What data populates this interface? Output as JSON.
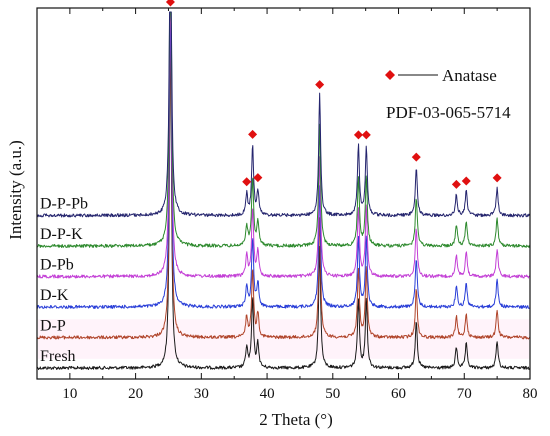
{
  "chart_data": {
    "type": "line",
    "xlabel": "2 Theta (°)",
    "ylabel": "Intensity (a.u.)",
    "xlim": [
      5,
      80
    ],
    "x_ticks": [
      10,
      20,
      30,
      40,
      50,
      60,
      70,
      80
    ],
    "y_ticks_shown": false,
    "grid": false,
    "legend": {
      "placement": "top-right",
      "entries": [
        {
          "marker": "diamond",
          "label": "Anatase"
        },
        {
          "marker": "none",
          "label": "PDF-03-065-5714"
        }
      ]
    },
    "peaks": [
      {
        "two_theta": 25.3,
        "rel_intensity": 1.0
      },
      {
        "two_theta": 36.9,
        "rel_intensity": 0.06
      },
      {
        "two_theta": 37.8,
        "rel_intensity": 0.2
      },
      {
        "two_theta": 38.6,
        "rel_intensity": 0.07
      },
      {
        "two_theta": 48.0,
        "rel_intensity": 0.35
      },
      {
        "two_theta": 53.9,
        "rel_intensity": 0.2
      },
      {
        "two_theta": 55.1,
        "rel_intensity": 0.2
      },
      {
        "two_theta": 62.7,
        "rel_intensity": 0.14
      },
      {
        "two_theta": 68.8,
        "rel_intensity": 0.06
      },
      {
        "two_theta": 70.3,
        "rel_intensity": 0.07
      },
      {
        "two_theta": 75.0,
        "rel_intensity": 0.08
      }
    ],
    "anatase_markers": [
      25.3,
      36.9,
      37.8,
      38.6,
      48.0,
      53.9,
      55.1,
      62.7,
      68.8,
      70.3,
      75.0
    ],
    "series": [
      {
        "name": "Fresh",
        "color": "#1a1a1a",
        "offset": 0
      },
      {
        "name": "D-P",
        "color": "#b0442a",
        "offset": 1
      },
      {
        "name": "D-K",
        "color": "#2a3fd8",
        "offset": 2
      },
      {
        "name": "D-Pb",
        "color": "#c33fd6",
        "offset": 3
      },
      {
        "name": "D-P-K",
        "color": "#2e8a2e",
        "offset": 4
      },
      {
        "name": "D-P-Pb",
        "color": "#25256e",
        "offset": 5
      }
    ]
  },
  "colors": {
    "marker": "#e01010",
    "axis": "#111111",
    "glow": "#ff9bd6"
  }
}
